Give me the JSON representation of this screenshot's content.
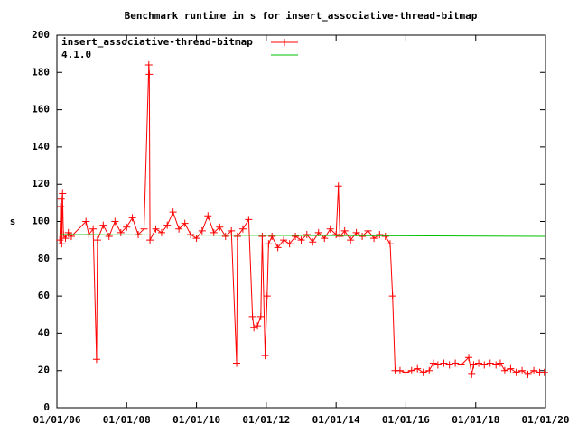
{
  "chart_data": {
    "type": "line",
    "title": "Benchmark runtime in s for insert_associative-thread-bitmap",
    "y_label": "s",
    "xlim": [
      "2006-01-01",
      "2020-01-01"
    ],
    "xticks": [
      {
        "value": "2006-01-01",
        "label": "01/01/06"
      },
      {
        "value": "2008-01-01",
        "label": "01/01/08"
      },
      {
        "value": "2010-01-01",
        "label": "01/01/10"
      },
      {
        "value": "2012-01-01",
        "label": "01/01/12"
      },
      {
        "value": "2014-01-01",
        "label": "01/01/14"
      },
      {
        "value": "2016-01-01",
        "label": "01/01/16"
      },
      {
        "value": "2018-01-01",
        "label": "01/01/18"
      },
      {
        "value": "2020-01-01",
        "label": "01/01/20"
      }
    ],
    "ylim": [
      0,
      200
    ],
    "yticks": [
      0,
      20,
      40,
      60,
      80,
      100,
      120,
      140,
      160,
      180,
      200
    ],
    "legend": "top-left",
    "series": [
      {
        "name": "insert_associative-thread-bitmap",
        "color": "#ff0000",
        "marker": "plus",
        "x": [
          "2006-02-01",
          "2006-02-10",
          "2006-02-15",
          "2006-02-20",
          "2006-03-01",
          "2006-03-10",
          "2006-04-01",
          "2006-05-01",
          "2006-06-01",
          "2006-11-01",
          "2006-12-01",
          "2007-01-15",
          "2007-02-20",
          "2007-03-01",
          "2007-05-01",
          "2007-07-01",
          "2007-09-01",
          "2007-11-01",
          "2008-01-01",
          "2008-03-01",
          "2008-05-01",
          "2008-07-01",
          "2008-08-20",
          "2008-08-25",
          "2008-09-01",
          "2008-11-01",
          "2009-01-01",
          "2009-03-01",
          "2009-05-01",
          "2009-07-01",
          "2009-09-01",
          "2009-11-01",
          "2010-01-01",
          "2010-03-01",
          "2010-05-01",
          "2010-07-01",
          "2010-09-01",
          "2010-11-01",
          "2011-01-01",
          "2011-02-25",
          "2011-03-05",
          "2011-05-01",
          "2011-07-01",
          "2011-08-10",
          "2011-08-25",
          "2011-10-01",
          "2011-11-05",
          "2011-11-20",
          "2011-12-20",
          "2012-01-10",
          "2012-01-25",
          "2012-03-01",
          "2012-05-01",
          "2012-07-01",
          "2012-09-01",
          "2012-11-01",
          "2013-01-01",
          "2013-03-01",
          "2013-05-01",
          "2013-07-01",
          "2013-09-01",
          "2013-11-01",
          "2014-01-01",
          "2014-01-25",
          "2014-02-10",
          "2014-04-01",
          "2014-06-01",
          "2014-08-01",
          "2014-10-01",
          "2014-12-01",
          "2015-02-01",
          "2015-04-01",
          "2015-06-01",
          "2015-07-20",
          "2015-08-15",
          "2015-09-10",
          "2015-11-01",
          "2016-01-01",
          "2016-03-01",
          "2016-05-01",
          "2016-07-01",
          "2016-09-01",
          "2016-10-15",
          "2016-12-01",
          "2017-02-01",
          "2017-04-01",
          "2017-06-01",
          "2017-08-01",
          "2017-10-20",
          "2017-11-20",
          "2017-12-10",
          "2018-02-01",
          "2018-04-01",
          "2018-06-01",
          "2018-08-01",
          "2018-09-15",
          "2018-11-01",
          "2019-01-01",
          "2019-03-01",
          "2019-05-01",
          "2019-07-01",
          "2019-09-01",
          "2019-11-01",
          "2019-12-20"
        ],
        "values": [
          90,
          108,
          112,
          88,
          115,
          93,
          91,
          94,
          92,
          100,
          93,
          96,
          26,
          90,
          98,
          92,
          100,
          94,
          97,
          102,
          93,
          96,
          184,
          179,
          90,
          96,
          94,
          98,
          105,
          96,
          99,
          93,
          91,
          95,
          103,
          94,
          97,
          92,
          95,
          24,
          92,
          96,
          101,
          49,
          43,
          44,
          49,
          92,
          28,
          60,
          88,
          92,
          86,
          90,
          88,
          92,
          90,
          93,
          89,
          94,
          91,
          96,
          93,
          119,
          92,
          95,
          90,
          94,
          92,
          95,
          91,
          93,
          92,
          88,
          60,
          20,
          20,
          19,
          20,
          21,
          19,
          20,
          24,
          23,
          24,
          23,
          24,
          23,
          27,
          18,
          23,
          24,
          23,
          24,
          23,
          24,
          20,
          21,
          19,
          20,
          18,
          20,
          19,
          19
        ]
      },
      {
        "name": "4.1.0",
        "color": "#00c000",
        "x": [
          "2006-02-01",
          "2020-01-01"
        ],
        "values": [
          93,
          92
        ]
      }
    ]
  }
}
